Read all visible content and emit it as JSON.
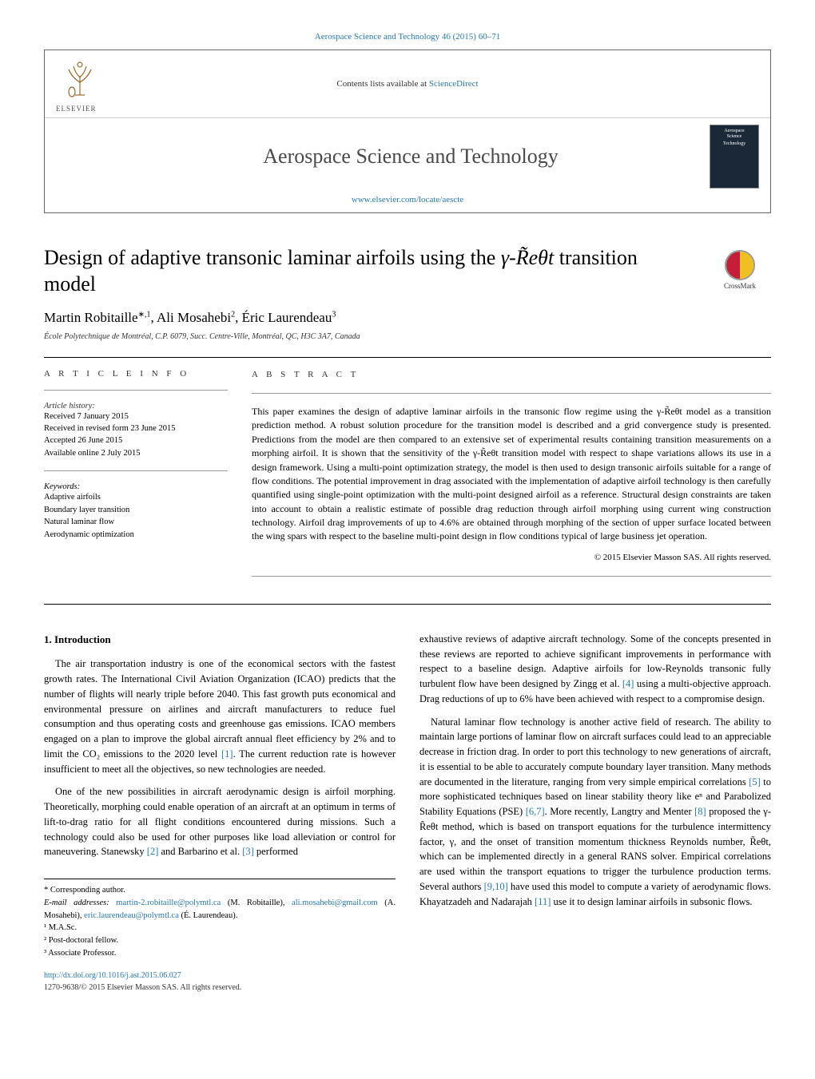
{
  "top_link": "Aerospace Science and Technology 46 (2015) 60–71",
  "header": {
    "elsevier_word": "ELSEVIER",
    "contents_pre": "Contents lists available at ",
    "contents_link": "ScienceDirect",
    "journal_name": "Aerospace Science and Technology",
    "journal_link": "www.elsevier.com/locate/aescte",
    "cover_line1": "Aerospace",
    "cover_line2": "Science",
    "cover_line3": "Technology"
  },
  "crossmark_label": "CrossMark",
  "title_pre": "Design of adaptive transonic laminar airfoils using the ",
  "title_math": "γ-R̃eθt",
  "title_post": " transition model",
  "authors": {
    "a1_name": "Martin Robitaille",
    "a1_sup": "∗,1",
    "a2_name": "Ali Mosahebi",
    "a2_sup": "2",
    "a3_name": "Éric Laurendeau",
    "a3_sup": "3"
  },
  "affiliation": "École Polytechnique de Montréal, C.P. 6079, Succ. Centre-Ville, Montréal, QC, H3C 3A7, Canada",
  "article_info_label": "A R T I C L E   I N F O",
  "abstract_label": "A B S T R A C T",
  "history_head": "Article history:",
  "history": {
    "received": "Received 7 January 2015",
    "revised": "Received in revised form 23 June 2015",
    "accepted": "Accepted 26 June 2015",
    "online": "Available online 2 July 2015"
  },
  "keywords_head": "Keywords:",
  "keywords": {
    "k1": "Adaptive airfoils",
    "k2": "Boundary layer transition",
    "k3": "Natural laminar flow",
    "k4": "Aerodynamic optimization"
  },
  "abstract_text": "This paper examines the design of adaptive laminar airfoils in the transonic flow regime using the γ-R̃eθt model as a transition prediction method. A robust solution procedure for the transition model is described and a grid convergence study is presented. Predictions from the model are then compared to an extensive set of experimental results containing transition measurements on a morphing airfoil. It is shown that the sensitivity of the γ-R̃eθt transition model with respect to shape variations allows its use in a design framework. Using a multi-point optimization strategy, the model is then used to design transonic airfoils suitable for a range of flow conditions. The potential improvement in drag associated with the implementation of adaptive airfoil technology is then carefully quantified using single-point optimization with the multi-point designed airfoil as a reference. Structural design constraints are taken into account to obtain a realistic estimate of possible drag reduction through airfoil morphing using current wing construction technology. Airfoil drag improvements of up to 4.6% are obtained through morphing of the section of upper surface located between the wing spars with respect to the baseline multi-point design in flow conditions typical of large business jet operation.",
  "copyright": "© 2015 Elsevier Masson SAS. All rights reserved.",
  "intro_head": "1. Introduction",
  "intro": {
    "p1": "The air transportation industry is one of the economical sectors with the fastest growth rates. The International Civil Aviation Organization (ICAO) predicts that the number of flights will nearly triple before 2040. This fast growth puts economical and environmental pressure on airlines and aircraft manufacturers to reduce fuel consumption and thus operating costs and greenhouse gas emissions. ICAO members engaged on a plan to improve the global aircraft annual fleet efficiency by 2% and to limit the CO₂ emissions to the 2020 level [1]. The current reduction rate is however insufficient to meet all the objectives, so new technologies are needed.",
    "p2": "One of the new possibilities in aircraft aerodynamic design is airfoil morphing. Theoretically, morphing could enable operation of an aircraft at an optimum in terms of lift-to-drag ratio for all flight conditions encountered during missions. Such a technology could also be used for other purposes like load alleviation or control for maneuvering. Stanewsky [2] and Barbarino et al. [3] performed",
    "p3": "exhaustive reviews of adaptive aircraft technology. Some of the concepts presented in these reviews are reported to achieve significant improvements in performance with respect to a baseline design. Adaptive airfoils for low-Reynolds transonic fully turbulent flow have been designed by Zingg et al. [4] using a multi-objective approach. Drag reductions of up to 6% have been achieved with respect to a compromise design.",
    "p4": "Natural laminar flow technology is another active field of research. The ability to maintain large portions of laminar flow on aircraft surfaces could lead to an appreciable decrease in friction drag. In order to port this technology to new generations of aircraft, it is essential to be able to accurately compute boundary layer transition. Many methods are documented in the literature, ranging from very simple empirical correlations [5] to more sophisticated techniques based on linear stability theory like eⁿ and Parabolized Stability Equations (PSE) [6,7]. More recently, Langtry and Menter [8] proposed the γ-R̃eθt method, which is based on transport equations for the turbulence intermittency factor, γ, and the onset of transition momentum thickness Reynolds number, R̃eθt, which can be implemented directly in a general RANS solver. Empirical correlations are used within the transport equations to trigger the turbulence production terms. Several authors [9,10] have used this model to compute a variety of aerodynamic flows. Khayatzadeh and Nadarajah [11] use it to design laminar airfoils in subsonic flows."
  },
  "footnotes": {
    "corr": "* Corresponding author.",
    "emails_label": "E-mail addresses: ",
    "e1": "martin-2.robitaille@polymtl.ca",
    "e1_name": " (M. Robitaille), ",
    "e2": "ali.mosahebi@gmail.com",
    "e2_name": " (A. Mosahebi), ",
    "e3": "eric.laurendeau@polymtl.ca",
    "e3_name": " (É. Laurendeau).",
    "n1": "¹ M.A.Sc.",
    "n2": "² Post-doctoral fellow.",
    "n3": "³ Associate Professor."
  },
  "doi": {
    "url": "http://dx.doi.org/10.1016/j.ast.2015.06.027",
    "issn_line": "1270-9638/© 2015 Elsevier Masson SAS. All rights reserved."
  },
  "colors": {
    "link": "#2a7ab0",
    "elsevier_orange": "#e67817",
    "cover_bg": "#1a2838",
    "crossmark_red": "#c41e3a",
    "crossmark_yellow": "#f0c020"
  }
}
